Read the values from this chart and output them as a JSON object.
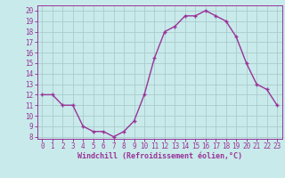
{
  "x": [
    0,
    1,
    2,
    3,
    4,
    5,
    6,
    7,
    8,
    9,
    10,
    11,
    12,
    13,
    14,
    15,
    16,
    17,
    18,
    19,
    20,
    21,
    22,
    23
  ],
  "y": [
    12,
    12,
    11,
    11,
    9,
    8.5,
    8.5,
    8,
    8.5,
    9.5,
    12,
    15.5,
    18,
    18.5,
    19.5,
    19.5,
    20,
    19.5,
    19,
    17.5,
    15,
    13,
    12.5,
    11
  ],
  "line_color": "#993399",
  "marker": "+",
  "marker_size": 3.5,
  "marker_lw": 1.0,
  "line_width": 1.0,
  "bg_color": "#c8eaea",
  "grid_color": "#aacccc",
  "xlabel": "Windchill (Refroidissement éolien,°C)",
  "xlabel_fontsize": 6.0,
  "tick_fontsize": 5.5,
  "ylim": [
    7.8,
    20.5
  ],
  "xlim": [
    -0.5,
    23.5
  ],
  "yticks": [
    8,
    9,
    10,
    11,
    12,
    13,
    14,
    15,
    16,
    17,
    18,
    19,
    20
  ],
  "xticks": [
    0,
    1,
    2,
    3,
    4,
    5,
    6,
    7,
    8,
    9,
    10,
    11,
    12,
    13,
    14,
    15,
    16,
    17,
    18,
    19,
    20,
    21,
    22,
    23
  ]
}
